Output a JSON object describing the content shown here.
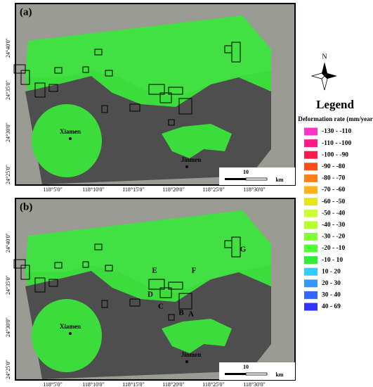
{
  "panels": [
    {
      "label": "(a)",
      "places": [
        "Xiamen",
        "Jinmen"
      ],
      "scale": "10",
      "scale_unit": "km",
      "y_ticks": [
        "24°40'0\"",
        "24°35'0\"",
        "24°30'0\"",
        "24°25'0\""
      ],
      "x_ticks": [
        "118°5'0\"",
        "118°10'0\"",
        "118°15'0\"",
        "118°20'0\"",
        "118°25'0\"",
        "118°30'0\""
      ],
      "letters": []
    },
    {
      "label": "(b)",
      "places": [
        "Xiamen",
        "Jinmen"
      ],
      "scale": "10",
      "scale_unit": "km",
      "y_ticks": [
        "24°40'0\"",
        "24°35'0\"",
        "24°30'0\"",
        "24°25'0\""
      ],
      "x_ticks": [
        "118°5'0\"",
        "118°10'0\"",
        "118°15'0\"",
        "118°20'0\"",
        "118°25'0\"",
        "118°30'0\""
      ],
      "letters": [
        "A",
        "B",
        "C",
        "D",
        "E",
        "F",
        "G"
      ]
    }
  ],
  "north": "N",
  "legend": {
    "title": "Legend",
    "subtitle": "Deformation rate (mm/year)",
    "items": [
      {
        "label": "-130 - -110",
        "color": "#ff33cc"
      },
      {
        "label": "-110 - -100",
        "color": "#ff1a8c"
      },
      {
        "label": "-100 - -90",
        "color": "#ff1a4d"
      },
      {
        "label": "-90 - -80",
        "color": "#ff4d1a"
      },
      {
        "label": "-80 - -70",
        "color": "#ff801a"
      },
      {
        "label": "-70 - -60",
        "color": "#ffb31a"
      },
      {
        "label": "-60 - -50",
        "color": "#e6e61a"
      },
      {
        "label": "-50 - -40",
        "color": "#ccff33"
      },
      {
        "label": "-40 - -30",
        "color": "#b3ff33"
      },
      {
        "label": "-30 - -20",
        "color": "#80ff33"
      },
      {
        "label": "-20 - -10",
        "color": "#4dff33"
      },
      {
        "label": "-10 - 10",
        "color": "#33ee33"
      },
      {
        "label": "10 - 20",
        "color": "#33ccff"
      },
      {
        "label": "20 - 30",
        "color": "#3399ff"
      },
      {
        "label": "30 - 40",
        "color": "#3366ff"
      },
      {
        "label": "40 - 69",
        "color": "#3333ff"
      }
    ]
  }
}
